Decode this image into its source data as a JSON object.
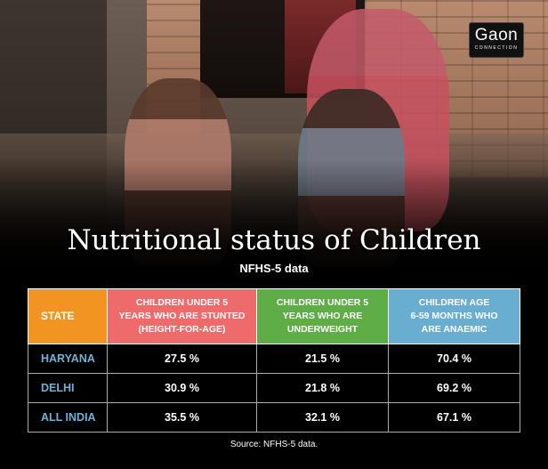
{
  "logo": {
    "main": "Gaon",
    "sub": "CONNECTION"
  },
  "chart_data": {
    "type": "table",
    "title": "Nutritional status of Children",
    "subtitle": "NFHS-5 data",
    "columns": [
      "STATE",
      "CHILDREN UNDER 5 YEARS WHO ARE STUNTED (HEIGHT-FOR-AGE)",
      "CHILDREN UNDER 5 YEARS WHO ARE UNDERWEIGHT",
      "CHILDREN AGE 6-59 MONTHS WHO ARE ANAEMIC"
    ],
    "column_colors": [
      "#f29422",
      "#ef6b6b",
      "#5fad47",
      "#69aed1"
    ],
    "rows": [
      [
        "HARYANA",
        "27.5 %",
        "21.5 %",
        "70.4 %"
      ],
      [
        "DELHI",
        "30.9 %",
        "21.8 %",
        "69.2 %"
      ],
      [
        "ALL INDIA",
        "35.5 %",
        "32.1 %",
        "67.1 %"
      ]
    ],
    "source": "Source: NFHS-5 data."
  },
  "header": {
    "c0": "STATE",
    "c1": [
      "CHILDREN UNDER 5",
      "YEARS WHO ARE STUNTED",
      "(HEIGHT-FOR-AGE)"
    ],
    "c2": [
      "CHILDREN UNDER 5",
      "YEARS WHO ARE",
      "UNDERWEIGHT"
    ],
    "c3": [
      "CHILDREN AGE",
      "6-59 MONTHS WHO",
      "ARE ANAEMIC"
    ]
  }
}
